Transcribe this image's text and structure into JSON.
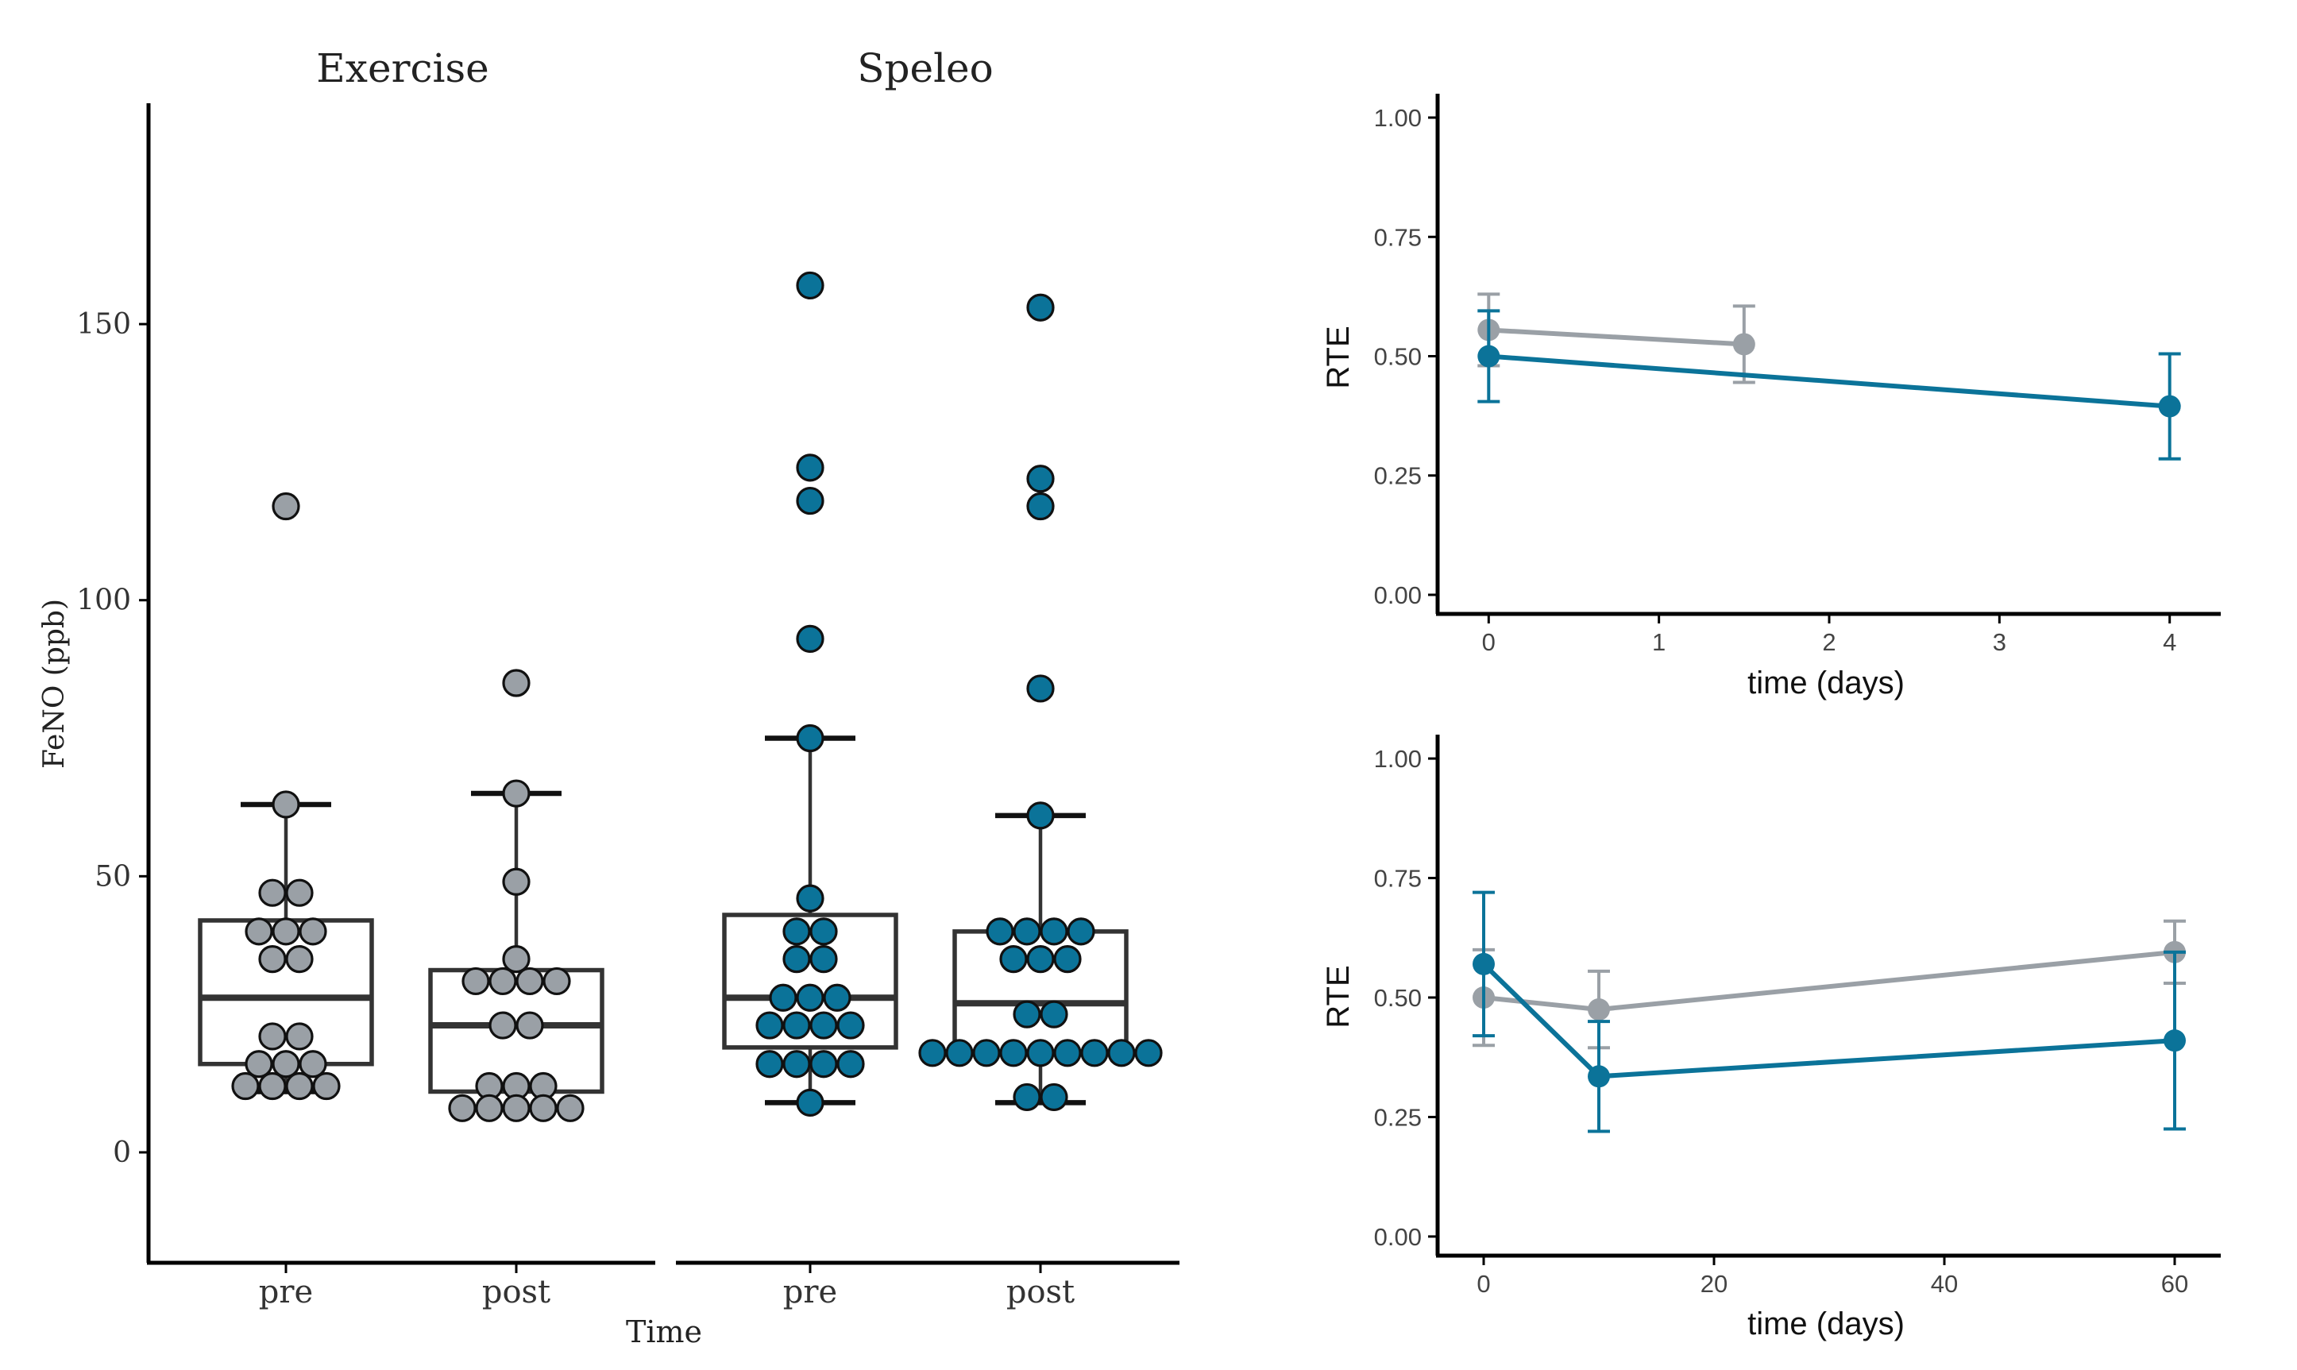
{
  "colors": {
    "exercise": "#9aa0a6",
    "speleo": "#0b7399",
    "axis": "#000000",
    "box": "#333333"
  },
  "chart_data": [
    {
      "type": "box",
      "title": "",
      "ylabel": "FeNO (ppb)",
      "xlabel": "Time",
      "ylim": [
        -20,
        190
      ],
      "yticks": [
        0,
        50,
        100,
        150
      ],
      "panels": [
        {
          "name": "Exercise",
          "color": "exercise",
          "groups": [
            {
              "label": "pre",
              "q1": 16,
              "median": 28,
              "q3": 42,
              "whisker_low": 11,
              "whisker_high": 63,
              "points": [
                117,
                63,
                47,
                47,
                40,
                40,
                40,
                35,
                35,
                21,
                21,
                16,
                16,
                16,
                12,
                12,
                12,
                12
              ]
            },
            {
              "label": "post",
              "q1": 11,
              "median": 23,
              "q3": 33,
              "whisker_low": 8,
              "whisker_high": 65,
              "points": [
                85,
                65,
                49,
                35,
                31,
                31,
                31,
                31,
                23,
                23,
                12,
                12,
                12,
                8,
                8,
                8,
                8,
                8
              ]
            }
          ]
        },
        {
          "name": "Speleo",
          "color": "speleo",
          "groups": [
            {
              "label": "pre",
              "q1": 19,
              "median": 28,
              "q3": 43,
              "whisker_low": 9,
              "whisker_high": 75,
              "points": [
                157,
                124,
                118,
                93,
                75,
                46,
                40,
                40,
                35,
                35,
                28,
                28,
                28,
                23,
                23,
                23,
                23,
                16,
                16,
                16,
                16,
                9
              ]
            },
            {
              "label": "post",
              "q1": 18,
              "median": 27,
              "q3": 40,
              "whisker_low": 9,
              "whisker_high": 61,
              "points": [
                153,
                122,
                117,
                84,
                61,
                40,
                40,
                40,
                40,
                35,
                35,
                35,
                25,
                25,
                18,
                18,
                18,
                18,
                18,
                18,
                18,
                18,
                18,
                10,
                10
              ]
            }
          ]
        }
      ]
    },
    {
      "type": "line",
      "xlabel": "time (days)",
      "ylabel": "RTE",
      "xlim": [
        -0.3,
        4.3
      ],
      "ylim": [
        -0.04,
        1.05
      ],
      "xticks": [
        "0",
        "1",
        "2",
        "3",
        "4"
      ],
      "yticks": [
        "0.00",
        "0.25",
        "0.50",
        "0.75",
        "1.00"
      ],
      "series": [
        {
          "name": "Exercise",
          "color": "exercise",
          "x": [
            0,
            1.5
          ],
          "y": [
            0.555,
            0.525
          ],
          "err": [
            0.075,
            0.08
          ]
        },
        {
          "name": "Speleo",
          "color": "speleo",
          "x": [
            0,
            4
          ],
          "y": [
            0.5,
            0.395
          ],
          "err": [
            0.095,
            0.11
          ]
        }
      ]
    },
    {
      "type": "line",
      "xlabel": "time (days)",
      "ylabel": "RTE",
      "xlim": [
        -4,
        64
      ],
      "ylim": [
        -0.04,
        1.05
      ],
      "xticks": [
        "0",
        "20",
        "40",
        "60"
      ],
      "yticks": [
        "0.00",
        "0.25",
        "0.50",
        "0.75",
        "1.00"
      ],
      "series": [
        {
          "name": "Exercise",
          "color": "exercise",
          "x": [
            0,
            10,
            60
          ],
          "y": [
            0.5,
            0.475,
            0.595
          ],
          "err": [
            0.1,
            0.08,
            0.065
          ]
        },
        {
          "name": "Speleo",
          "color": "speleo",
          "x": [
            0,
            10,
            60
          ],
          "y": [
            0.57,
            0.335,
            0.41
          ],
          "err": [
            0.15,
            0.115,
            0.185
          ]
        }
      ]
    }
  ]
}
